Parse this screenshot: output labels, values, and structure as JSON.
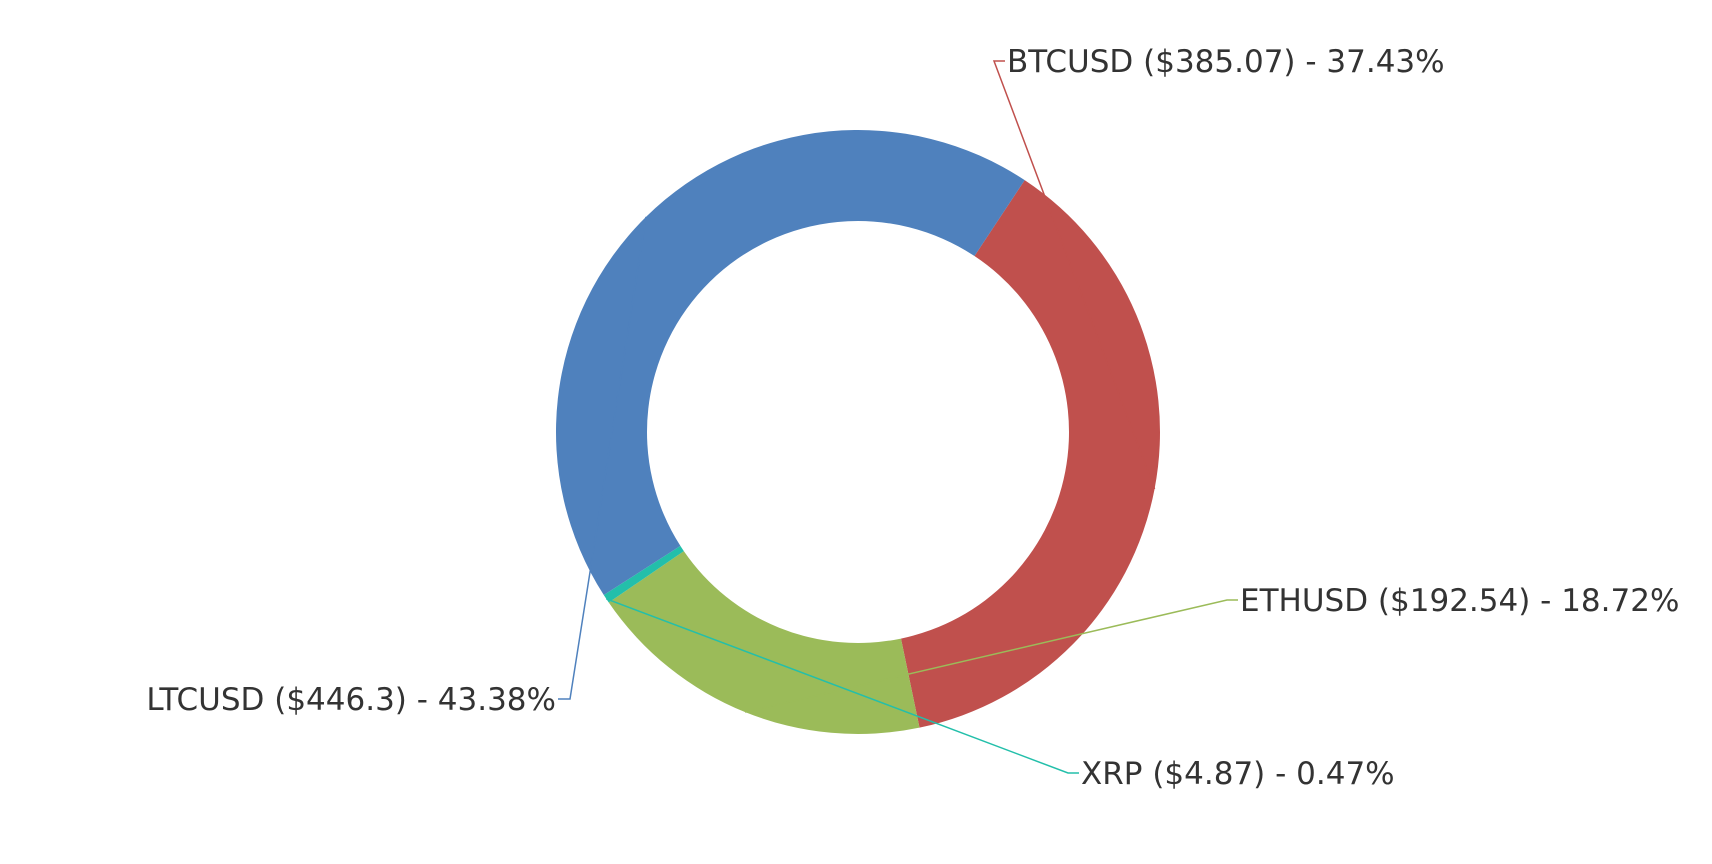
{
  "chart_data": {
    "type": "pie",
    "variant": "donut",
    "title": "",
    "legend": "none",
    "slices": [
      {
        "name": "BTCUSD",
        "value": 385.07,
        "percent": 37.43,
        "color": "#c0504d",
        "label": "BTCUSD ($385.07) - 37.43%"
      },
      {
        "name": "ETHUSD",
        "value": 192.54,
        "percent": 18.72,
        "color": "#9bbb59",
        "label": "ETHUSD ($192.54) - 18.72%"
      },
      {
        "name": "XRP",
        "value": 4.87,
        "percent": 0.47,
        "color": "#23bfaa",
        "label": "XRP ($4.87) - 0.47%"
      },
      {
        "name": "LTCUSD",
        "value": 446.3,
        "percent": 43.38,
        "color": "#4f81bd",
        "label": "LTCUSD ($446.3) - 43.38%"
      }
    ]
  }
}
